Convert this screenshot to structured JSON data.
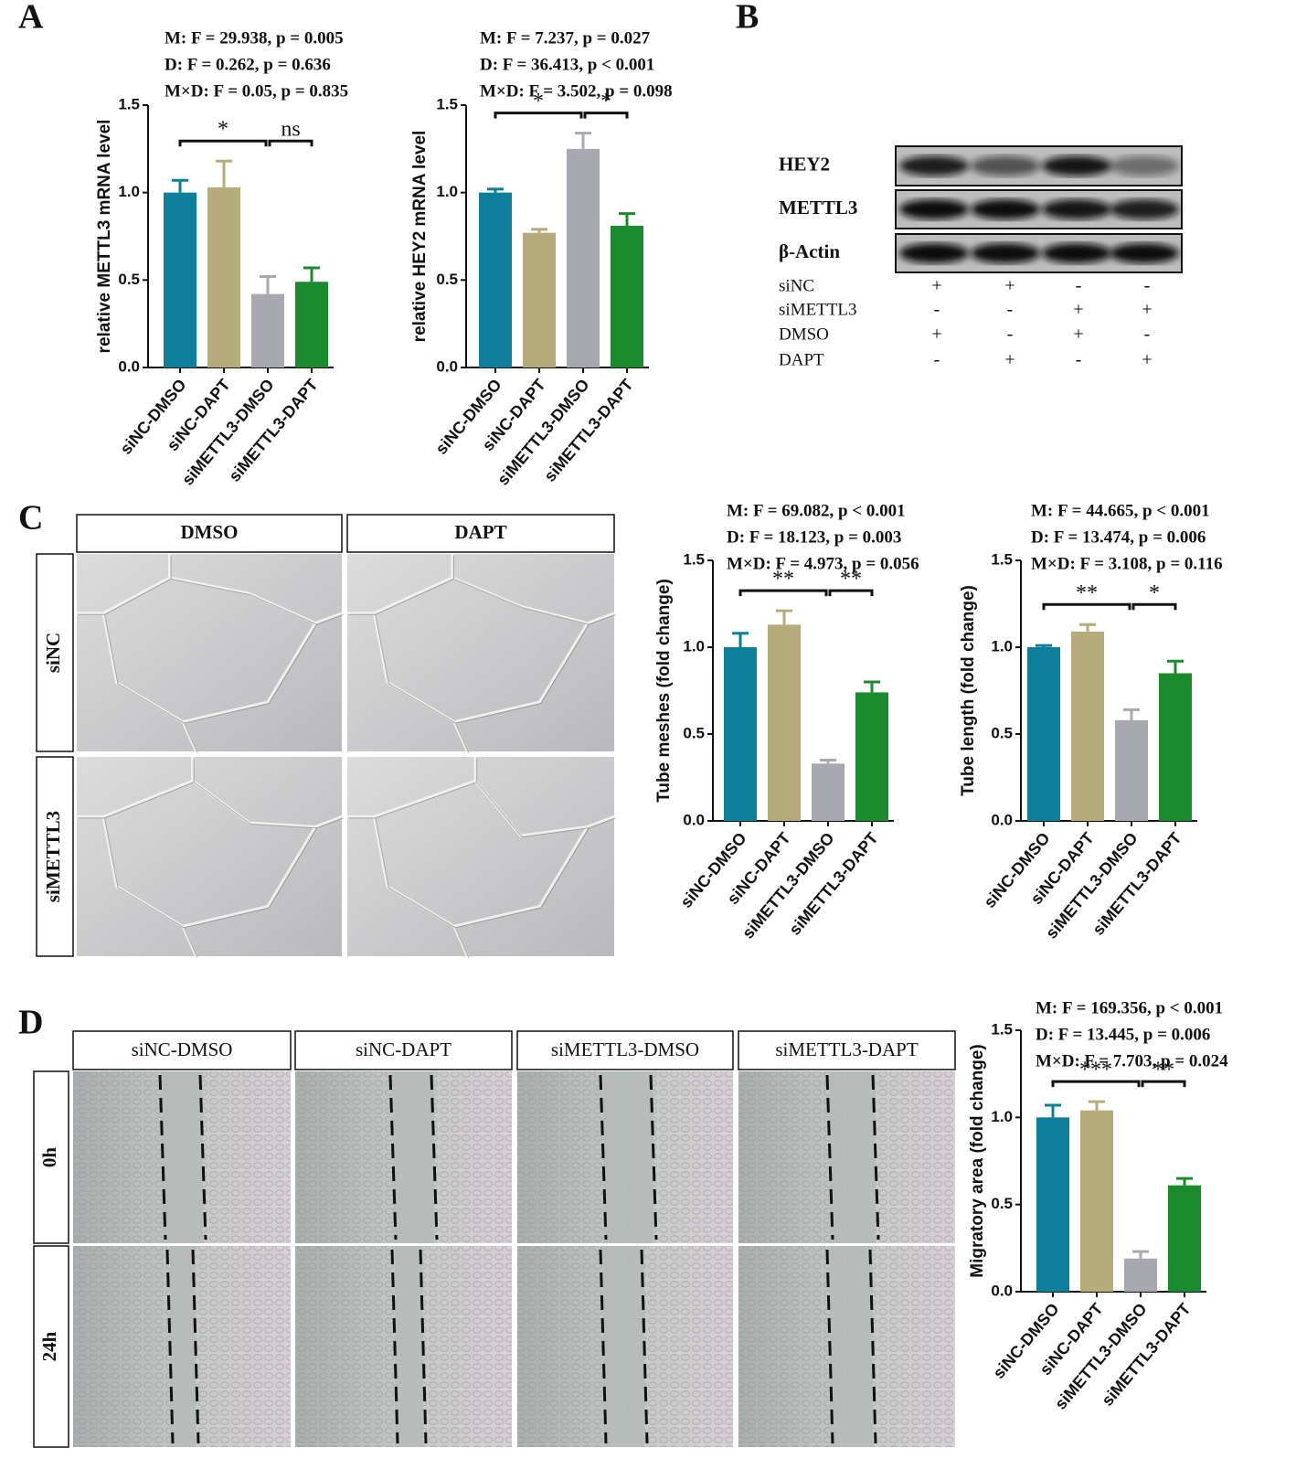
{
  "panels": [
    "A",
    "B",
    "C",
    "D"
  ],
  "chart_data": [
    {
      "type": "bar",
      "y_label": "relative METTL3 mRNA level",
      "stats": [
        "M: F = 29.938, p = 0.005",
        "D: F = 0.262, p = 0.636",
        "M×D: F = 0.05, p = 0.835"
      ],
      "significance": [
        "*",
        "ns"
      ],
      "categories": [
        "siNC-DMSO",
        "siNC-DAPT",
        "siMETTL3-DMSO",
        "siMETTL3-DAPT"
      ],
      "values": [
        1.0,
        1.03,
        0.42,
        0.49
      ],
      "errors": [
        0.07,
        0.15,
        0.1,
        0.08
      ],
      "colors": [
        "#0e7f9a",
        "#b5ab7b",
        "#a8a8b0",
        "#1b8a2c"
      ],
      "ylim": [
        0,
        1.5
      ],
      "yticks": [
        {
          "value": 0,
          "label": "0.0"
        },
        0.5,
        {
          "value": 1,
          "label": "1.0"
        },
        1.5
      ]
    },
    {
      "type": "bar",
      "y_label": "relative HEY2 mRNA level",
      "stats": [
        "M: F = 7.237, p = 0.027",
        "D: F = 36.413, p < 0.001",
        "M×D: F = 3.502, p = 0.098"
      ],
      "significance": [
        "*",
        "*"
      ],
      "categories": [
        "siNC-DMSO",
        "siNC-DAPT",
        "siMETTL3-DMSO",
        "siMETTL3-DAPT"
      ],
      "values": [
        1.0,
        0.77,
        1.25,
        0.81
      ],
      "errors": [
        0.02,
        0.02,
        0.09,
        0.07
      ],
      "colors": [
        "#0e7f9a",
        "#b5ab7b",
        "#a8a8b0",
        "#1b8a2c"
      ],
      "ylim": [
        0,
        1.5
      ],
      "yticks": [
        {
          "value": 0,
          "label": "0.0"
        },
        0.5,
        {
          "value": 1,
          "label": "1.0"
        },
        1.5
      ]
    },
    {
      "type": "bar",
      "y_label": "Tube meshes (fold change)",
      "stats": [
        "M: F = 69.082, p < 0.001",
        "D: F = 18.123, p = 0.003",
        "M×D: F = 4.973, p = 0.056"
      ],
      "significance": [
        "**",
        "**"
      ],
      "categories": [
        "siNC-DMSO",
        "siNC-DAPT",
        "siMETTL3-DMSO",
        "siMETTL3-DAPT"
      ],
      "values": [
        1.0,
        1.13,
        0.33,
        0.74
      ],
      "errors": [
        0.08,
        0.08,
        0.02,
        0.06
      ],
      "colors": [
        "#0e7f9a",
        "#b5ab7b",
        "#a8a8b0",
        "#1b8a2c"
      ],
      "ylim": [
        0,
        1.5
      ],
      "yticks": [
        {
          "value": 0,
          "label": "0.0"
        },
        0.5,
        {
          "value": 1,
          "label": "1.0"
        },
        1.5
      ]
    },
    {
      "type": "bar",
      "y_label": "Tube length (fold change)",
      "stats": [
        "M: F = 44.665, p < 0.001",
        "D: F = 13.474, p = 0.006",
        "M×D: F = 3.108, p = 0.116"
      ],
      "significance": [
        "**",
        "*"
      ],
      "categories": [
        "siNC-DMSO",
        "siNC-DAPT",
        "siMETTL3-DMSO",
        "siMETTL3-DAPT"
      ],
      "values": [
        1.0,
        1.09,
        0.58,
        0.85
      ],
      "errors": [
        0.01,
        0.04,
        0.06,
        0.07
      ],
      "colors": [
        "#0e7f9a",
        "#b5ab7b",
        "#a8a8b0",
        "#1b8a2c"
      ],
      "ylim": [
        0,
        1.5
      ],
      "yticks": [
        {
          "value": 0,
          "label": "0.0"
        },
        0.5,
        {
          "value": 1,
          "label": "1.0"
        },
        1.5
      ]
    },
    {
      "type": "bar",
      "y_label": "Migratory area (fold change)",
      "stats": [
        "M: F = 169.356, p < 0.001",
        "D: F = 13.445, p = 0.006",
        "M×D: F = 7.703, p = 0.024"
      ],
      "significance": [
        "***",
        "**"
      ],
      "categories": [
        "siNC-DMSO",
        "siNC-DAPT",
        "siMETTL3-DMSO",
        "siMETTL3-DAPT"
      ],
      "values": [
        1.0,
        1.04,
        0.19,
        0.61
      ],
      "errors": [
        0.07,
        0.05,
        0.04,
        0.04
      ],
      "colors": [
        "#0e7f9a",
        "#b5ab7b",
        "#a8a8b0",
        "#1b8a2c"
      ],
      "ylim": [
        0,
        1.5
      ],
      "yticks": [
        {
          "value": 0,
          "label": "0.0"
        },
        0.5,
        {
          "value": 1,
          "label": "1.0"
        },
        1.5
      ]
    }
  ],
  "blot": {
    "proteins": [
      "HEY2",
      "METTL3",
      "β-Actin"
    ],
    "conditions": [
      {
        "label": "siNC",
        "signs": [
          "+",
          "+",
          "-",
          "-"
        ]
      },
      {
        "label": "siMETTL3",
        "signs": [
          "-",
          "-",
          "+",
          "+"
        ]
      },
      {
        "label": "DMSO",
        "signs": [
          "+",
          "-",
          "+",
          "-"
        ]
      },
      {
        "label": "DAPT",
        "signs": [
          "-",
          "+",
          "-",
          "+"
        ]
      }
    ]
  },
  "tube_formation": {
    "columns": [
      "DMSO",
      "DAPT"
    ],
    "rows": [
      "siNC",
      "siMETTL3"
    ]
  },
  "wound_healing": {
    "columns": [
      "siNC-DMSO",
      "siNC-DAPT",
      "siMETTL3-DMSO",
      "siMETTL3-DAPT"
    ],
    "rows": [
      "0h",
      "24h"
    ]
  }
}
